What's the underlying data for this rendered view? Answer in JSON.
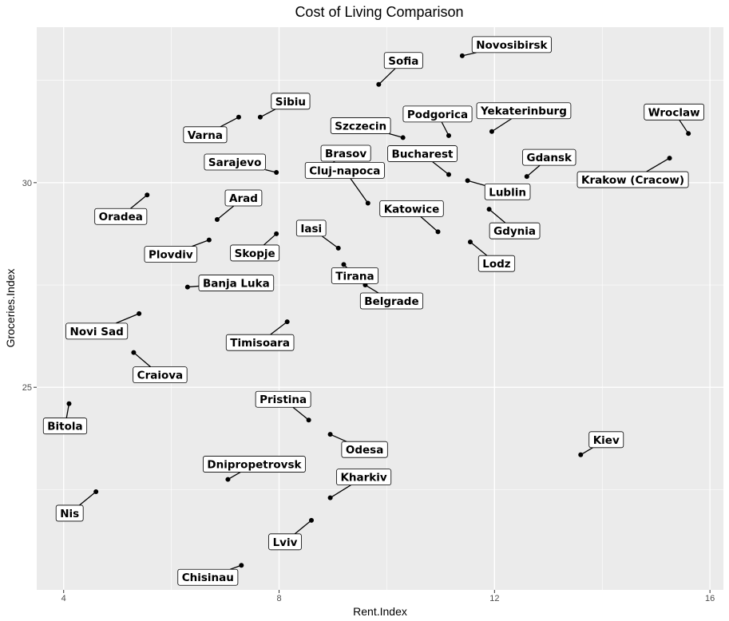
{
  "chart_data": {
    "type": "scatter",
    "title": "Cost of Living Comparison",
    "xlabel": "Rent.Index",
    "ylabel": "Groceries.Index",
    "xlim": [
      3.5,
      16.25
    ],
    "ylim": [
      20.05,
      33.8
    ],
    "xticks": [
      4,
      8,
      12,
      16
    ],
    "xtick_labels": [
      "4",
      "8",
      "12",
      "16"
    ],
    "yticks": [
      25,
      30
    ],
    "ytick_labels": [
      "25",
      "30"
    ],
    "grid": true,
    "legend": "none",
    "colors": {
      "panel": "#ebebeb",
      "grid": "#ffffff",
      "point": "#000000",
      "label_fill": "#ffffff",
      "label_border": "#000000"
    },
    "points": [
      {
        "label": "Novosibirsk",
        "x": 11.4,
        "y": 33.1
      },
      {
        "label": "Sofia",
        "x": 9.85,
        "y": 32.4
      },
      {
        "label": "Varna",
        "x": 7.25,
        "y": 31.6
      },
      {
        "label": "Sibiu",
        "x": 7.65,
        "y": 31.6
      },
      {
        "label": "Szczecin",
        "x": 10.3,
        "y": 31.1
      },
      {
        "label": "Podgorica",
        "x": 11.15,
        "y": 31.15
      },
      {
        "label": "Yekaterinburg",
        "x": 11.95,
        "y": 31.25
      },
      {
        "label": "Wroclaw",
        "x": 15.6,
        "y": 31.2
      },
      {
        "label": "Sarajevo",
        "x": 7.95,
        "y": 30.25
      },
      {
        "label": "Brasov",
        "x": 8.75,
        "y": 30.25
      },
      {
        "label": "Bucharest",
        "x": 11.15,
        "y": 30.2
      },
      {
        "label": "Gdansk",
        "x": 12.6,
        "y": 30.15
      },
      {
        "label": "Krakow (Cracow)",
        "x": 15.25,
        "y": 30.6
      },
      {
        "label": "Lublin",
        "x": 11.5,
        "y": 30.05
      },
      {
        "label": "Cluj-napoca",
        "x": 9.65,
        "y": 29.5
      },
      {
        "label": "Oradea",
        "x": 5.55,
        "y": 29.7
      },
      {
        "label": "Arad",
        "x": 6.85,
        "y": 29.1
      },
      {
        "label": "Gdynia",
        "x": 11.9,
        "y": 29.35
      },
      {
        "label": "Katowice",
        "x": 10.95,
        "y": 28.8
      },
      {
        "label": "Plovdiv",
        "x": 6.7,
        "y": 28.6
      },
      {
        "label": "Skopje",
        "x": 7.95,
        "y": 28.75
      },
      {
        "label": "Iasi",
        "x": 9.1,
        "y": 28.4
      },
      {
        "label": "Lodz",
        "x": 11.55,
        "y": 28.55
      },
      {
        "label": "Tirana",
        "x": 9.2,
        "y": 28.0
      },
      {
        "label": "Belgrade",
        "x": 9.6,
        "y": 27.5
      },
      {
        "label": "Banja Luka",
        "x": 6.3,
        "y": 27.45
      },
      {
        "label": "Novi Sad",
        "x": 5.4,
        "y": 26.8
      },
      {
        "label": "Timisoara",
        "x": 8.15,
        "y": 26.6
      },
      {
        "label": "Craiova",
        "x": 5.3,
        "y": 25.85
      },
      {
        "label": "Bitola",
        "x": 4.1,
        "y": 24.6
      },
      {
        "label": "Pristina",
        "x": 8.55,
        "y": 24.2
      },
      {
        "label": "Odesa",
        "x": 8.95,
        "y": 23.85
      },
      {
        "label": "Kiev",
        "x": 13.6,
        "y": 23.35
      },
      {
        "label": "Dnipropetrovsk",
        "x": 7.05,
        "y": 22.75
      },
      {
        "label": "Nis",
        "x": 4.6,
        "y": 22.45
      },
      {
        "label": "Kharkiv",
        "x": 8.95,
        "y": 22.3
      },
      {
        "label": "Lviv",
        "x": 8.6,
        "y": 21.75
      },
      {
        "label": "Chisinau",
        "x": 7.3,
        "y": 20.65
      }
    ]
  }
}
